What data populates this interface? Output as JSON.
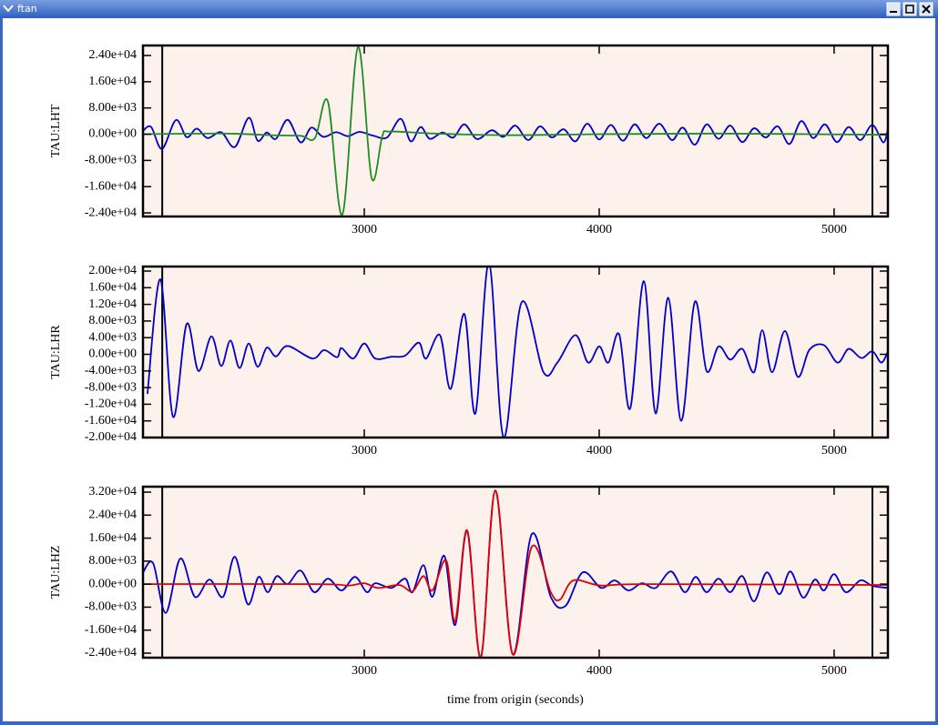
{
  "window": {
    "title": "ftan"
  },
  "chart_data": [
    {
      "type": "line",
      "ylabel": "TAU:LHT",
      "xlim": [
        2058,
        5229
      ],
      "ylim": [
        -25100,
        27050
      ],
      "xticks": [
        3000,
        4000,
        5000
      ],
      "yticks": [
        {
          "value": 24000,
          "label": "2.40e+04"
        },
        {
          "value": 16000,
          "label": "1.60e+04"
        },
        {
          "value": 8000,
          "label": "8.00e+03"
        },
        {
          "value": 0,
          "label": "0.00e+00"
        },
        {
          "value": -8000,
          "label": "-8.00e+03"
        },
        {
          "value": -16000,
          "label": "-1.60e+04"
        },
        {
          "value": -24000,
          "label": "-2.40e+04"
        }
      ],
      "vlines": [
        2140,
        5163
      ],
      "grid": false,
      "series": [
        {
          "color": "#0000cc",
          "x": [
            2058,
            2093,
            2139,
            2198,
            2244,
            2287,
            2333,
            2391,
            2449,
            2508,
            2546,
            2585,
            2624,
            2674,
            2729,
            2775,
            2825,
            2880,
            2930,
            2980,
            3040,
            3097,
            3155,
            3198,
            3240,
            3279,
            3333,
            3380,
            3426,
            3480,
            3542,
            3593,
            3643,
            3698,
            3748,
            3798,
            3849,
            3899,
            3949,
            4000,
            4050,
            4101,
            4151,
            4201,
            4256,
            4310,
            4356,
            4407,
            4457,
            4508,
            4558,
            4609,
            4659,
            4709,
            4760,
            4810,
            4860,
            4911,
            4961,
            5012,
            5062,
            5112,
            5163,
            5209,
            5229
          ],
          "values": [
            1000,
            2200,
            -4500,
            4300,
            -900,
            1700,
            -1200,
            600,
            -3900,
            5000,
            -2000,
            500,
            -1400,
            4400,
            -2500,
            2000,
            -800,
            600,
            -600,
            700,
            -500,
            -1000,
            4700,
            -2200,
            2200,
            -1400,
            500,
            -1000,
            3000,
            -1500,
            1200,
            -800,
            2600,
            -1800,
            2400,
            -1000,
            1500,
            -2200,
            3200,
            -1600,
            2800,
            -2000,
            3000,
            -1200,
            3200,
            -1800,
            2000,
            -3200,
            3000,
            -1400,
            2600,
            -2400,
            1800,
            -1000,
            2400,
            -3000,
            4000,
            -1200,
            3000,
            -2400,
            2200,
            -1800,
            2800,
            -2500,
            1500
          ]
        },
        {
          "color": "#228b22",
          "x": [
            2058,
            2400,
            2600,
            2729,
            2790,
            2845,
            2907,
            2973,
            3031,
            3077,
            3110,
            3300,
            3600,
            4000,
            4500,
            5229
          ],
          "values": [
            0,
            200,
            -300,
            -500,
            -1200,
            10000,
            -24500,
            26500,
            -13300,
            -500,
            800,
            200,
            -300,
            0,
            200,
            -200
          ]
        }
      ]
    },
    {
      "type": "line",
      "ylabel": "TAU:LHR",
      "xlim": [
        2058,
        5229
      ],
      "ylim": [
        -20000,
        21090
      ],
      "xticks": [
        3000,
        4000,
        5000
      ],
      "yticks": [
        {
          "value": 20000,
          "label": "2.00e+04"
        },
        {
          "value": 16000,
          "label": "1.60e+04"
        },
        {
          "value": 12000,
          "label": "1.20e+04"
        },
        {
          "value": 8000,
          "label": "8.00e+03"
        },
        {
          "value": 4000,
          "label": "4.00e+03"
        },
        {
          "value": 0,
          "label": "0.00e+00"
        },
        {
          "value": -4000,
          "label": "-4.00e+03"
        },
        {
          "value": -8000,
          "label": "-8.00e+03"
        },
        {
          "value": -12000,
          "label": "-1.20e+04"
        },
        {
          "value": -16000,
          "label": "-1.60e+04"
        },
        {
          "value": -20000,
          "label": "-2.00e+04"
        }
      ],
      "vlines": [
        2140,
        5163
      ],
      "grid": false,
      "series": [
        {
          "color": "#0000cc",
          "x": [
            2077,
            2132,
            2186,
            2244,
            2294,
            2349,
            2391,
            2430,
            2469,
            2508,
            2546,
            2585,
            2624,
            2674,
            2779,
            2829,
            2884,
            2903,
            2953,
            3000,
            3046,
            3116,
            3174,
            3232,
            3263,
            3322,
            3368,
            3426,
            3473,
            3531,
            3593,
            3670,
            3763,
            3822,
            3899,
            3953,
            4000,
            4039,
            4085,
            4132,
            4190,
            4240,
            4294,
            4349,
            4407,
            4457,
            4508,
            4558,
            4609,
            4659,
            4694,
            4736,
            4791,
            4845,
            4895,
            4957,
            5015,
            5062,
            5116,
            5163,
            5201,
            5229
          ],
          "values": [
            -9500,
            18000,
            -15000,
            7300,
            -4000,
            4300,
            -2800,
            3300,
            -3300,
            2600,
            -3000,
            1600,
            -500,
            2000,
            -1000,
            1000,
            -700,
            1500,
            -1000,
            2600,
            -1000,
            -600,
            -300,
            2800,
            -1000,
            4600,
            -8300,
            9700,
            -14200,
            22000,
            -20000,
            12500,
            -4300,
            -2000,
            4600,
            -2000,
            1900,
            -2000,
            4800,
            -13000,
            17600,
            -14200,
            13600,
            -16000,
            12600,
            -4000,
            1900,
            -1300,
            1300,
            -4300,
            5800,
            -4300,
            5600,
            -5400,
            1100,
            2200,
            -2000,
            1300,
            -900,
            700,
            -2000,
            700
          ]
        }
      ]
    },
    {
      "type": "line",
      "ylabel": "TAU:LHZ",
      "xlabel": "time from origin (seconds)",
      "xlim": [
        2058,
        5229
      ],
      "ylim": [
        -25580,
        33900
      ],
      "xticks": [
        3000,
        4000,
        5000
      ],
      "yticks": [
        {
          "value": 32000,
          "label": "3.20e+04"
        },
        {
          "value": 24000,
          "label": "2.40e+04"
        },
        {
          "value": 16000,
          "label": "1.60e+04"
        },
        {
          "value": 8000,
          "label": "8.00e+03"
        },
        {
          "value": 0,
          "label": "0.00e+00"
        },
        {
          "value": -8000,
          "label": "-8.00e+03"
        },
        {
          "value": -16000,
          "label": "-1.60e+04"
        },
        {
          "value": -24000,
          "label": "-2.40e+04"
        }
      ],
      "vlines": [
        2140,
        5163
      ],
      "grid": false,
      "series": [
        {
          "color": "#0000cc",
          "x": [
            2058,
            2101,
            2155,
            2217,
            2279,
            2341,
            2399,
            2449,
            2504,
            2550,
            2589,
            2628,
            2674,
            2729,
            2787,
            2845,
            2903,
            2961,
            3011,
            3046,
            3116,
            3174,
            3205,
            3252,
            3290,
            3341,
            3387,
            3438,
            3496,
            3558,
            3632,
            3713,
            3794,
            3856,
            3930,
            4008,
            4066,
            4124,
            4182,
            4240,
            4306,
            4364,
            4411,
            4457,
            4508,
            4558,
            4609,
            4659,
            4713,
            4767,
            4814,
            4868,
            4918,
            4957,
            5000,
            5050,
            5112,
            5163,
            5229
          ],
          "values": [
            4000,
            7300,
            -10000,
            8900,
            -4400,
            1600,
            -4400,
            9500,
            -7000,
            2500,
            -2800,
            2800,
            0,
            4700,
            -2800,
            1900,
            -2200,
            2500,
            -2800,
            300,
            -1300,
            1900,
            -2800,
            6600,
            -4400,
            9800,
            -14200,
            18400,
            -25500,
            32600,
            -24400,
            17400,
            -4400,
            -7600,
            4100,
            -1300,
            1300,
            -2200,
            300,
            -1300,
            4400,
            -2800,
            2500,
            -2800,
            1900,
            -2800,
            2800,
            -6000,
            4100,
            -3500,
            4400,
            -4700,
            1600,
            -2200,
            3500,
            -2800,
            1300,
            -600,
            -1300
          ]
        },
        {
          "color": "#e00000",
          "x": [
            2058,
            2800,
            2930,
            3000,
            3058,
            3150,
            3205,
            3252,
            3290,
            3349,
            3387,
            3438,
            3496,
            3558,
            3632,
            3713,
            3794,
            3833,
            3891,
            4008,
            4200,
            5229
          ],
          "values": [
            0,
            0,
            -500,
            300,
            -1300,
            -300,
            -2500,
            2800,
            -2200,
            8200,
            -13000,
            18700,
            -25500,
            32600,
            -24400,
            13000,
            -2800,
            -5400,
            1300,
            -500,
            0,
            -300
          ]
        }
      ]
    }
  ]
}
